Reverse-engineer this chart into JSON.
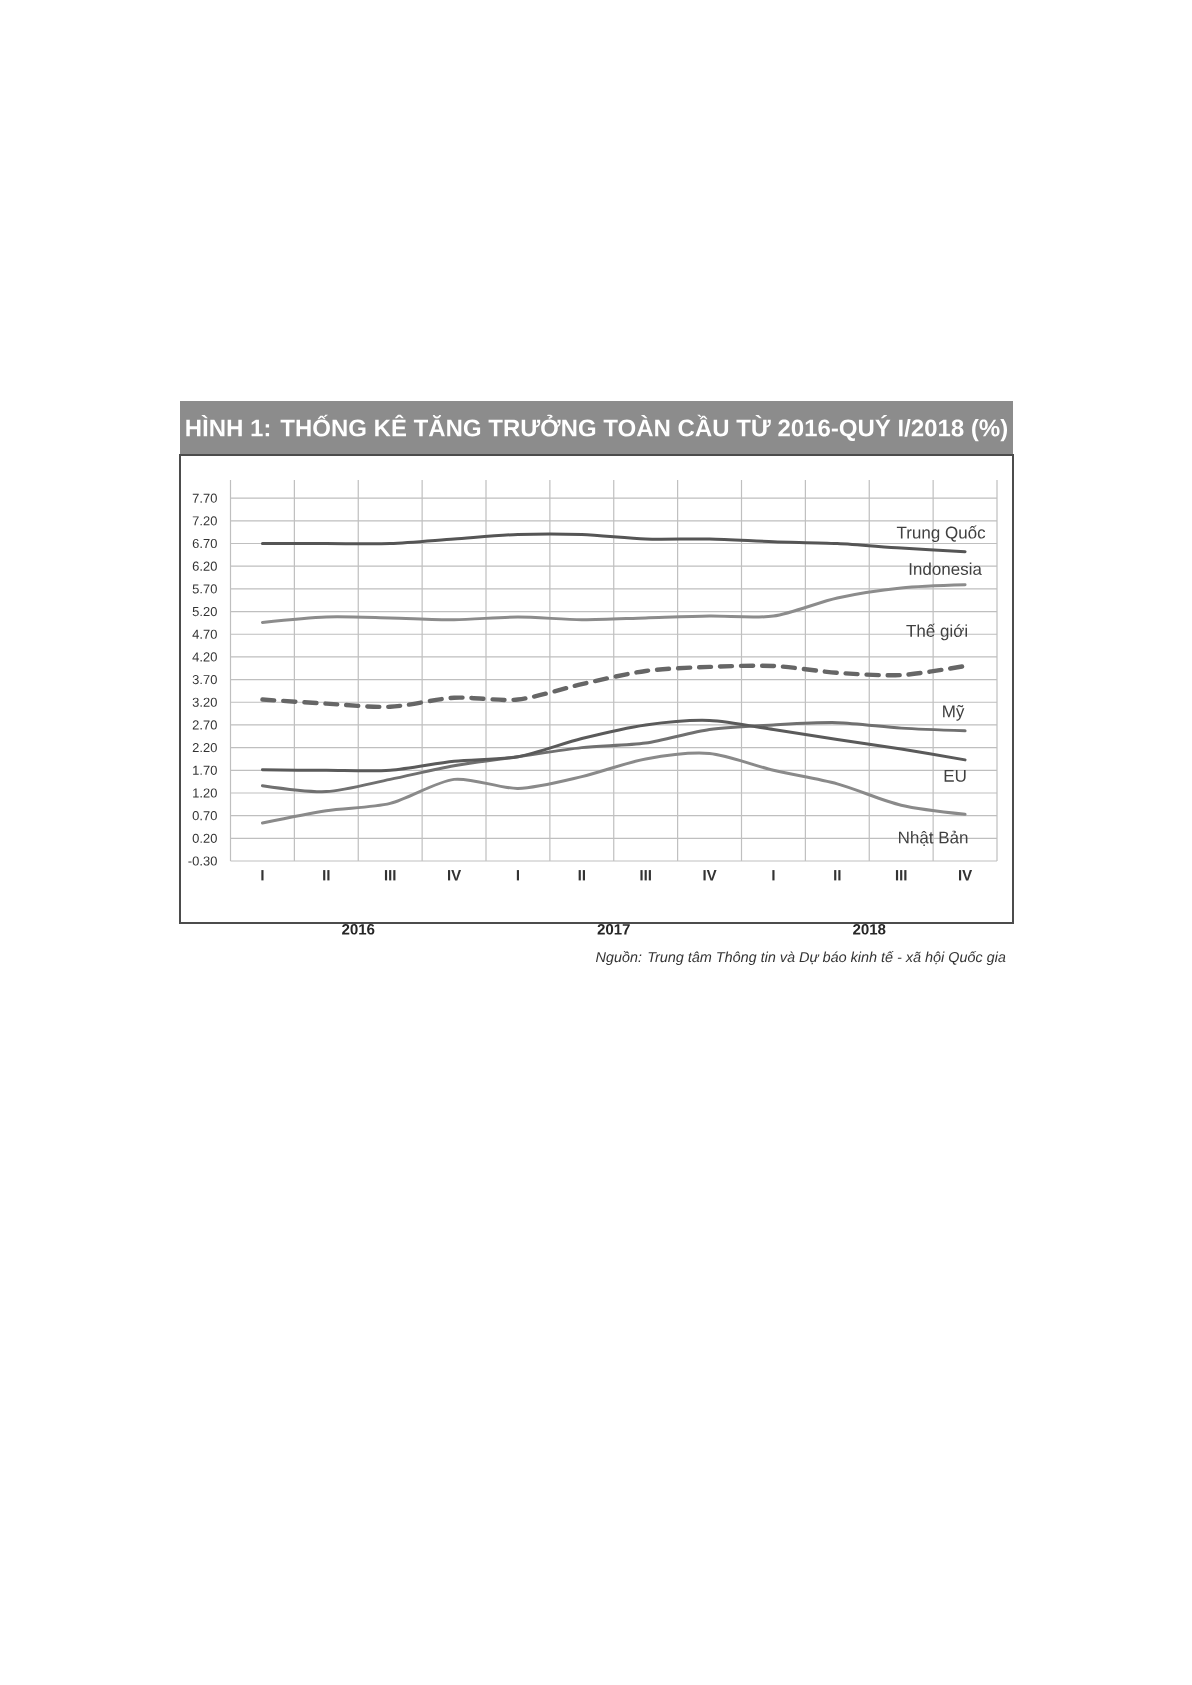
{
  "chart_data": {
    "type": "line",
    "title": "HÌNH 1: THỐNG KÊ TĂNG TRƯỞNG TOÀN CẦU TỪ 2016-QUÝ I/2018 (%)",
    "categories": [
      "I",
      "II",
      "III",
      "IV",
      "I",
      "II",
      "III",
      "IV",
      "I",
      "II",
      "III",
      "IV"
    ],
    "series": [
      {
        "name": "Trung Quốc",
        "color": "#555555",
        "line_style": "solid",
        "values": [
          6.7,
          6.7,
          6.7,
          6.8,
          6.9,
          6.9,
          6.8,
          6.8,
          6.74,
          6.7,
          6.6,
          6.52
        ]
      },
      {
        "name": "Indonesia",
        "color": "#8c8c8c",
        "line_style": "solid",
        "values": [
          4.96,
          5.08,
          5.06,
          5.02,
          5.08,
          5.02,
          5.06,
          5.1,
          5.1,
          5.5,
          5.72,
          5.79
        ]
      },
      {
        "name": "Thế giới",
        "color": "#666666",
        "line_style": "dashed",
        "values": [
          3.26,
          3.17,
          3.1,
          3.3,
          3.26,
          3.6,
          3.89,
          3.98,
          4.0,
          3.85,
          3.8,
          4.0
        ]
      },
      {
        "name": "Mỹ",
        "color": "#707070",
        "line_style": "solid",
        "values": [
          1.36,
          1.23,
          1.5,
          1.8,
          2.0,
          2.2,
          2.3,
          2.6,
          2.7,
          2.75,
          2.63,
          2.57
        ]
      },
      {
        "name": "EU",
        "color": "#5a5a5a",
        "line_style": "solid",
        "values": [
          1.71,
          1.7,
          1.7,
          1.9,
          2.0,
          2.4,
          2.7,
          2.8,
          2.6,
          2.38,
          2.17,
          1.93
        ]
      },
      {
        "name": "Nhật Bản",
        "color": "#8a8a8a",
        "line_style": "solid",
        "values": [
          0.54,
          0.81,
          0.97,
          1.5,
          1.3,
          1.56,
          1.95,
          2.07,
          1.7,
          1.4,
          0.93,
          0.73
        ]
      }
    ],
    "ylim": [
      -0.3,
      8.1
    ],
    "yticks": [
      {
        "value": -0.3,
        "label": "-0.30"
      },
      {
        "value": 0.2,
        "label": "0.20"
      },
      {
        "value": 0.7,
        "label": "0.70"
      },
      {
        "value": 1.2,
        "label": "1.20"
      },
      {
        "value": 1.7,
        "label": "1.70"
      },
      {
        "value": 2.2,
        "label": "2.20"
      },
      {
        "value": 2.7,
        "label": "2.70"
      },
      {
        "value": 3.2,
        "label": "3.20"
      },
      {
        "value": 3.7,
        "label": "3.70"
      },
      {
        "value": 4.2,
        "label": "4.20"
      },
      {
        "value": 4.7,
        "label": "4.70"
      },
      {
        "value": 5.2,
        "label": "5.20"
      },
      {
        "value": 5.7,
        "label": "5.70"
      },
      {
        "value": 6.2,
        "label": "6.20"
      },
      {
        "value": 6.7,
        "label": "6.70"
      },
      {
        "value": 7.2,
        "label": "7.20"
      },
      {
        "value": 7.7,
        "label": "7.70"
      }
    ],
    "grid": true,
    "annotations": [
      "Nguồn: Trung tâm Thông tin và Dự báo kinh tế - xã hội Quốc gia",
      "2016",
      "2017",
      "2018"
    ]
  }
}
